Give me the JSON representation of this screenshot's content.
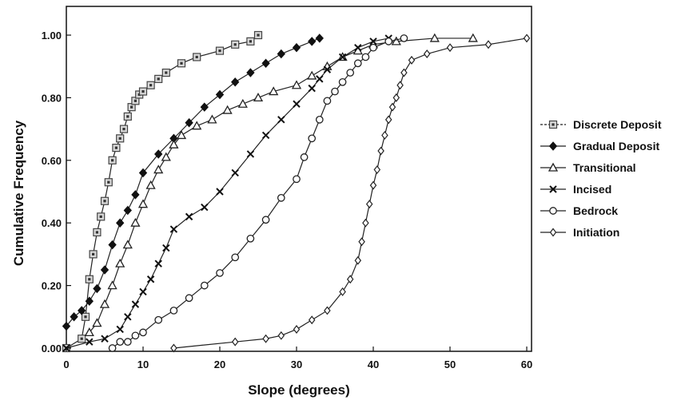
{
  "chart_data": {
    "type": "line",
    "title": "",
    "xlabel": "Slope (degrees)",
    "ylabel": "Cumulative Frequency",
    "xlim": [
      0,
      65
    ],
    "ylim": [
      0,
      1.1
    ],
    "xticks": [
      0,
      10,
      20,
      30,
      40,
      50,
      60
    ],
    "xtick_labels": [
      "0",
      "10",
      "20",
      "30",
      "40",
      "50",
      "60"
    ],
    "yticks": [
      0,
      0.2,
      0.4,
      0.6,
      0.8,
      1.0
    ],
    "ytick_labels": [
      "0.00",
      "0.20",
      "0.40",
      "0.60",
      "0.80",
      "1.00"
    ],
    "grid": false,
    "legend_position": "right",
    "series": [
      {
        "name": "Discrete Deposit",
        "marker": "square-dot",
        "x": [
          0,
          2,
          2.5,
          3,
          3.5,
          4,
          4.5,
          5,
          5.5,
          6,
          6.5,
          7,
          7.5,
          8,
          8.5,
          9,
          9.5,
          10,
          11,
          12,
          13,
          15,
          17,
          20,
          22,
          24,
          25
        ],
        "y": [
          0,
          0.03,
          0.1,
          0.22,
          0.3,
          0.37,
          0.42,
          0.47,
          0.53,
          0.6,
          0.64,
          0.67,
          0.7,
          0.74,
          0.77,
          0.79,
          0.81,
          0.82,
          0.84,
          0.86,
          0.88,
          0.91,
          0.93,
          0.95,
          0.97,
          0.98,
          1.0
        ]
      },
      {
        "name": "Gradual Deposit",
        "marker": "diamond",
        "x": [
          0,
          1,
          2,
          3,
          4,
          5,
          6,
          7,
          8,
          9,
          10,
          12,
          14,
          16,
          18,
          20,
          22,
          24,
          26,
          28,
          30,
          32,
          33
        ],
        "y": [
          0.07,
          0.1,
          0.12,
          0.15,
          0.19,
          0.25,
          0.33,
          0.4,
          0.44,
          0.49,
          0.56,
          0.62,
          0.67,
          0.72,
          0.77,
          0.81,
          0.85,
          0.88,
          0.91,
          0.94,
          0.96,
          0.98,
          0.99
        ]
      },
      {
        "name": "Transitional",
        "marker": "triangle",
        "x": [
          3,
          4,
          5,
          6,
          7,
          8,
          9,
          10,
          11,
          12,
          13,
          14,
          15,
          17,
          19,
          21,
          23,
          25,
          27,
          30,
          32,
          34,
          36,
          38,
          40,
          43,
          48,
          53
        ],
        "y": [
          0.05,
          0.08,
          0.14,
          0.2,
          0.27,
          0.33,
          0.4,
          0.46,
          0.52,
          0.57,
          0.61,
          0.65,
          0.68,
          0.71,
          0.73,
          0.76,
          0.78,
          0.8,
          0.82,
          0.84,
          0.87,
          0.9,
          0.93,
          0.95,
          0.97,
          0.98,
          0.99,
          0.99
        ]
      },
      {
        "name": "Incised",
        "marker": "x",
        "x": [
          0,
          3,
          5,
          7,
          8,
          9,
          10,
          11,
          12,
          13,
          14,
          16,
          18,
          20,
          22,
          24,
          26,
          28,
          30,
          32,
          33,
          34,
          36,
          38,
          40,
          42
        ],
        "y": [
          0,
          0.02,
          0.03,
          0.06,
          0.1,
          0.14,
          0.18,
          0.22,
          0.27,
          0.32,
          0.38,
          0.42,
          0.45,
          0.5,
          0.56,
          0.62,
          0.68,
          0.73,
          0.78,
          0.83,
          0.86,
          0.89,
          0.93,
          0.96,
          0.98,
          0.99
        ]
      },
      {
        "name": "Bedrock",
        "marker": "circle",
        "x": [
          6,
          7,
          8,
          9,
          10,
          12,
          14,
          16,
          18,
          20,
          22,
          24,
          26,
          28,
          30,
          31,
          32,
          33,
          34,
          35,
          36,
          37,
          38,
          39,
          40,
          42,
          44
        ],
        "y": [
          0.0,
          0.02,
          0.02,
          0.04,
          0.05,
          0.09,
          0.12,
          0.16,
          0.2,
          0.24,
          0.29,
          0.35,
          0.41,
          0.48,
          0.54,
          0.61,
          0.67,
          0.73,
          0.79,
          0.82,
          0.85,
          0.88,
          0.91,
          0.93,
          0.96,
          0.98,
          0.99
        ]
      },
      {
        "name": "Initiation",
        "marker": "thin-diamond",
        "x": [
          14,
          22,
          26,
          28,
          30,
          32,
          34,
          36,
          37,
          38,
          38.5,
          39,
          39.5,
          40,
          40.5,
          41,
          41.5,
          42,
          42.5,
          43,
          43.5,
          44,
          45,
          47,
          50,
          55,
          60
        ],
        "y": [
          0.0,
          0.02,
          0.03,
          0.04,
          0.06,
          0.09,
          0.12,
          0.18,
          0.22,
          0.28,
          0.34,
          0.4,
          0.46,
          0.52,
          0.57,
          0.63,
          0.68,
          0.73,
          0.77,
          0.8,
          0.84,
          0.88,
          0.92,
          0.94,
          0.96,
          0.97,
          0.99
        ]
      }
    ]
  }
}
